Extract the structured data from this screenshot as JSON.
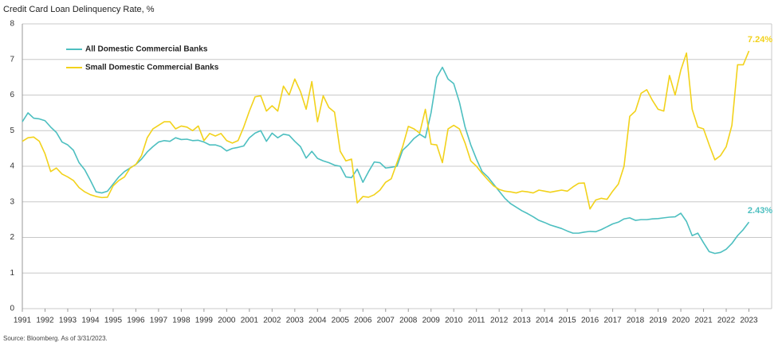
{
  "chart_data": {
    "type": "line",
    "title": "Credit Card Loan Delinquency Rate, %",
    "source": "Source: Bloomberg. As of 3/31/2023.",
    "x": [
      1991,
      1991.25,
      1991.5,
      1991.75,
      1992,
      1992.25,
      1992.5,
      1992.75,
      1993,
      1993.25,
      1993.5,
      1993.75,
      1994,
      1994.25,
      1994.5,
      1994.75,
      1995,
      1995.25,
      1995.5,
      1995.75,
      1996,
      1996.25,
      1996.5,
      1996.75,
      1997,
      1997.25,
      1997.5,
      1997.75,
      1998,
      1998.25,
      1998.5,
      1998.75,
      1999,
      1999.25,
      1999.5,
      1999.75,
      2000,
      2000.25,
      2000.5,
      2000.75,
      2001,
      2001.25,
      2001.5,
      2001.75,
      2002,
      2002.25,
      2002.5,
      2002.75,
      2003,
      2003.25,
      2003.5,
      2003.75,
      2004,
      2004.25,
      2004.5,
      2004.75,
      2005,
      2005.25,
      2005.5,
      2005.75,
      2006,
      2006.25,
      2006.5,
      2006.75,
      2007,
      2007.25,
      2007.5,
      2007.75,
      2008,
      2008.25,
      2008.5,
      2008.75,
      2009,
      2009.25,
      2009.5,
      2009.75,
      2010,
      2010.25,
      2010.5,
      2010.75,
      2011,
      2011.25,
      2011.5,
      2011.75,
      2012,
      2012.25,
      2012.5,
      2012.75,
      2013,
      2013.25,
      2013.5,
      2013.75,
      2014,
      2014.25,
      2014.5,
      2014.75,
      2015,
      2015.25,
      2015.5,
      2015.75,
      2016,
      2016.25,
      2016.5,
      2016.75,
      2017,
      2017.25,
      2017.5,
      2017.75,
      2018,
      2018.25,
      2018.5,
      2018.75,
      2019,
      2019.25,
      2019.5,
      2019.75,
      2020,
      2020.25,
      2020.5,
      2020.75,
      2021,
      2021.25,
      2021.5,
      2021.75,
      2022,
      2022.25,
      2022.5,
      2022.75,
      2023
    ],
    "xlim": [
      1991,
      2024
    ],
    "xticks": [
      1991,
      1992,
      1993,
      1994,
      1995,
      1996,
      1997,
      1998,
      1999,
      2000,
      2001,
      2002,
      2003,
      2004,
      2005,
      2006,
      2007,
      2008,
      2009,
      2010,
      2011,
      2012,
      2013,
      2014,
      2015,
      2016,
      2017,
      2018,
      2019,
      2020,
      2021,
      2022,
      2023
    ],
    "ylim": [
      0,
      8
    ],
    "yticks": [
      0,
      1,
      2,
      3,
      4,
      5,
      6,
      7,
      8
    ],
    "grid": true,
    "legend": "top-left",
    "series": [
      {
        "name": "All Domestic Commercial Banks",
        "color": "#4dbfc0",
        "values": [
          5.25,
          5.5,
          5.35,
          5.33,
          5.28,
          5.1,
          4.95,
          4.68,
          4.6,
          4.45,
          4.1,
          3.9,
          3.6,
          3.28,
          3.25,
          3.3,
          3.5,
          3.7,
          3.85,
          3.95,
          4.05,
          4.2,
          4.4,
          4.55,
          4.68,
          4.72,
          4.7,
          4.8,
          4.75,
          4.76,
          4.72,
          4.73,
          4.68,
          4.6,
          4.6,
          4.55,
          4.43,
          4.5,
          4.53,
          4.57,
          4.8,
          4.93,
          5.0,
          4.7,
          4.93,
          4.8,
          4.9,
          4.87,
          4.7,
          4.55,
          4.23,
          4.42,
          4.22,
          4.15,
          4.1,
          4.03,
          4.0,
          3.7,
          3.68,
          3.92,
          3.55,
          3.85,
          4.12,
          4.1,
          3.95,
          3.97,
          4.0,
          4.45,
          4.6,
          4.78,
          4.9,
          4.8,
          5.5,
          6.5,
          6.78,
          6.45,
          6.32,
          5.8,
          5.1,
          4.6,
          4.2,
          3.85,
          3.7,
          3.5,
          3.3,
          3.1,
          2.95,
          2.85,
          2.75,
          2.67,
          2.58,
          2.48,
          2.42,
          2.35,
          2.3,
          2.25,
          2.18,
          2.12,
          2.12,
          2.15,
          2.17,
          2.16,
          2.22,
          2.3,
          2.38,
          2.43,
          2.52,
          2.55,
          2.48,
          2.5,
          2.5,
          2.52,
          2.53,
          2.55,
          2.57,
          2.58,
          2.68,
          2.45,
          2.05,
          2.12,
          1.85,
          1.6,
          1.55,
          1.58,
          1.67,
          1.83,
          2.05,
          2.22,
          2.43
        ],
        "value_labels": [
          null,
          null,
          null,
          null,
          null,
          null,
          null,
          null,
          null,
          null,
          null,
          null,
          null,
          null,
          null,
          null,
          null,
          null,
          null,
          null,
          null,
          null,
          null,
          null,
          null,
          null,
          null,
          null,
          null,
          null,
          null,
          null,
          null,
          null,
          null,
          null,
          null,
          null,
          null,
          null,
          null,
          null,
          null,
          null,
          null,
          null,
          null,
          null,
          null,
          null,
          null,
          null,
          null,
          null,
          null,
          null,
          null,
          null,
          null,
          null,
          null,
          null,
          null,
          null,
          null,
          null,
          null,
          null,
          null,
          null,
          null,
          null,
          null,
          null,
          null,
          null,
          null,
          null,
          null,
          null,
          null,
          null,
          null,
          null,
          null,
          null,
          null,
          null,
          null,
          null,
          null,
          null,
          null,
          null,
          null,
          null,
          null,
          null,
          null,
          null,
          null,
          null,
          null,
          null,
          null,
          null,
          null,
          null,
          null,
          null,
          null,
          null,
          null,
          null,
          null,
          null,
          null,
          null,
          null,
          null,
          null,
          null,
          null,
          null,
          null,
          null,
          null,
          null,
          "2.43%"
        ]
      },
      {
        "name": "Small Domestic Commercial Banks",
        "color": "#f2d21b",
        "values": [
          4.7,
          4.8,
          4.82,
          4.7,
          4.35,
          3.85,
          3.95,
          3.78,
          3.7,
          3.6,
          3.4,
          3.28,
          3.2,
          3.15,
          3.12,
          3.13,
          3.45,
          3.6,
          3.7,
          3.95,
          4.05,
          4.3,
          4.8,
          5.05,
          5.15,
          5.25,
          5.25,
          5.05,
          5.13,
          5.1,
          5.0,
          5.13,
          4.72,
          4.92,
          4.85,
          4.92,
          4.72,
          4.65,
          4.72,
          5.1,
          5.55,
          5.95,
          5.98,
          5.55,
          5.7,
          5.55,
          6.25,
          6.0,
          6.45,
          6.1,
          5.6,
          6.38,
          5.25,
          5.98,
          5.65,
          5.52,
          4.42,
          4.15,
          4.2,
          2.97,
          3.15,
          3.13,
          3.2,
          3.33,
          3.55,
          3.65,
          4.1,
          4.55,
          5.12,
          5.05,
          4.93,
          5.6,
          4.62,
          4.6,
          4.1,
          5.05,
          5.15,
          5.05,
          4.65,
          4.15,
          4.0,
          3.8,
          3.62,
          3.45,
          3.35,
          3.3,
          3.28,
          3.25,
          3.3,
          3.28,
          3.25,
          3.33,
          3.3,
          3.27,
          3.3,
          3.33,
          3.3,
          3.42,
          3.52,
          3.53,
          2.8,
          3.05,
          3.1,
          3.07,
          3.3,
          3.5,
          4.0,
          5.4,
          5.55,
          6.05,
          6.15,
          5.85,
          5.6,
          5.55,
          6.55,
          6.0,
          6.7,
          7.18,
          5.6,
          5.1,
          5.05,
          4.6,
          4.18,
          4.3,
          4.55,
          5.15,
          6.85,
          6.85,
          7.24
        ],
        "value_labels": [
          null,
          null,
          null,
          null,
          null,
          null,
          null,
          null,
          null,
          null,
          null,
          null,
          null,
          null,
          null,
          null,
          null,
          null,
          null,
          null,
          null,
          null,
          null,
          null,
          null,
          null,
          null,
          null,
          null,
          null,
          null,
          null,
          null,
          null,
          null,
          null,
          null,
          null,
          null,
          null,
          null,
          null,
          null,
          null,
          null,
          null,
          null,
          null,
          null,
          null,
          null,
          null,
          null,
          null,
          null,
          null,
          null,
          null,
          null,
          null,
          null,
          null,
          null,
          null,
          null,
          null,
          null,
          null,
          null,
          null,
          null,
          null,
          null,
          null,
          null,
          null,
          null,
          null,
          null,
          null,
          null,
          null,
          null,
          null,
          null,
          null,
          null,
          null,
          null,
          null,
          null,
          null,
          null,
          null,
          null,
          null,
          null,
          null,
          null,
          null,
          null,
          null,
          null,
          null,
          null,
          null,
          null,
          null,
          null,
          null,
          null,
          null,
          null,
          null,
          null,
          null,
          null,
          null,
          null,
          null,
          null,
          null,
          null,
          null,
          null,
          null,
          null,
          null,
          "7.24%"
        ]
      }
    ]
  }
}
